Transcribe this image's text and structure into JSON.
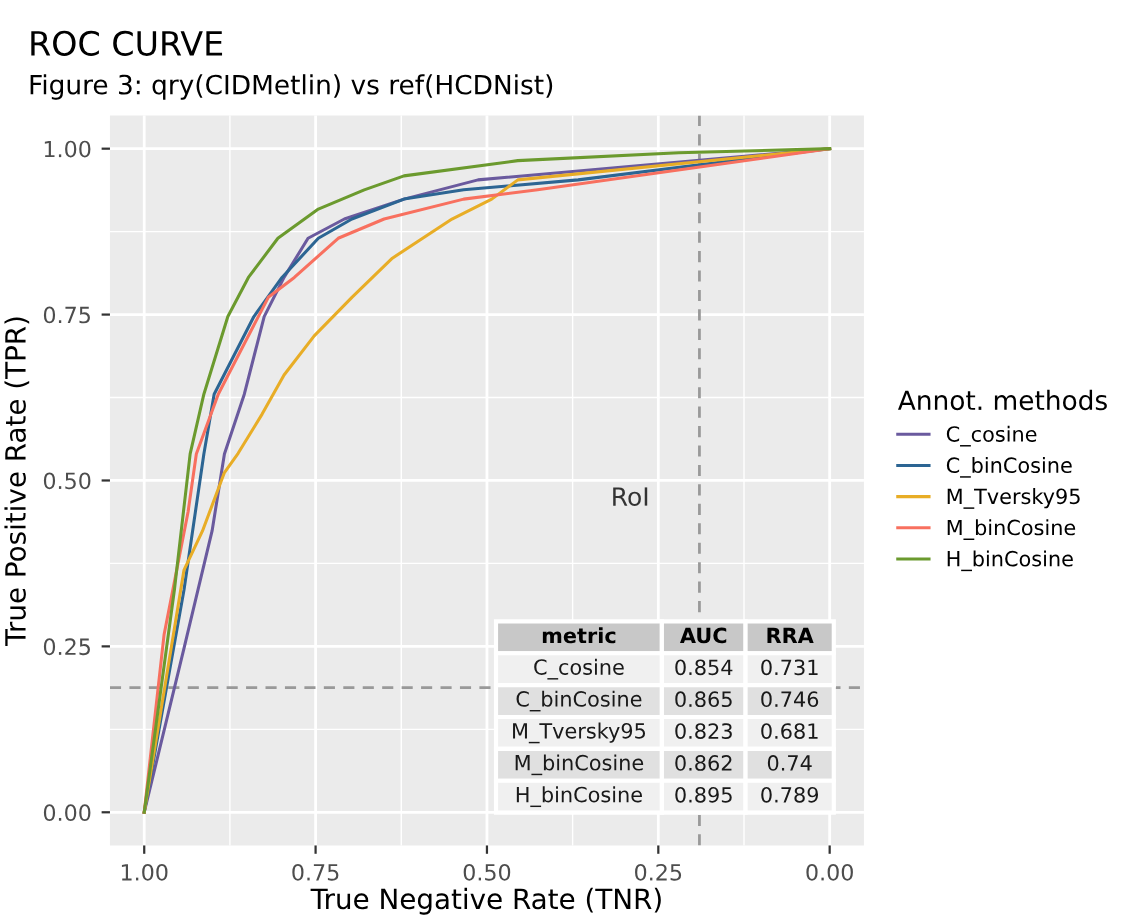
{
  "chart_data": {
    "type": "line",
    "title": "ROC CURVE",
    "subtitle": "Figure 3: qry(CIDMetlin) vs ref(HCDNist)",
    "xlabel": "True Negative Rate (TNR)",
    "ylabel": "True Positive Rate (TPR)",
    "legend_title": "Annot. methods",
    "xlim": [
      1.05,
      -0.05
    ],
    "ylim": [
      -0.05,
      1.05
    ],
    "xticks": [
      {
        "value": 1,
        "label": "1.00"
      },
      {
        "value": 0.75,
        "label": "0.75"
      },
      {
        "value": 0.5,
        "label": "0.50"
      },
      {
        "value": 0.25,
        "label": "0.25"
      },
      {
        "value": 0,
        "label": "0.00"
      }
    ],
    "yticks": [
      {
        "value": 0,
        "label": "0.00"
      },
      {
        "value": 0.25,
        "label": "0.25"
      },
      {
        "value": 0.5,
        "label": "0.50"
      },
      {
        "value": 0.75,
        "label": "0.75"
      },
      {
        "value": 1,
        "label": "1.00"
      }
    ],
    "grid": true,
    "legend": "right",
    "series": [
      {
        "name": "C_cosine",
        "color": "#6a5a9e",
        "x": [
          1,
          0.942,
          0.901,
          0.883,
          0.854,
          0.825,
          0.796,
          0.761,
          0.708,
          0.621,
          0.513,
          0
        ],
        "values": [
          0,
          0.247,
          0.424,
          0.54,
          0.63,
          0.747,
          0.806,
          0.865,
          0.894,
          0.924,
          0.953,
          1
        ]
      },
      {
        "name": "C_binCosine",
        "color": "#2c6593",
        "x": [
          1,
          0.942,
          0.913,
          0.898,
          0.84,
          0.799,
          0.746,
          0.697,
          0.621,
          0.534,
          0.367,
          0
        ],
        "values": [
          0,
          0.335,
          0.54,
          0.63,
          0.747,
          0.806,
          0.865,
          0.894,
          0.924,
          0.938,
          0.953,
          1
        ]
      },
      {
        "name": "M_Tversky95",
        "color": "#e8ad26",
        "x": [
          1,
          0.942,
          0.915,
          0.883,
          0.863,
          0.828,
          0.796,
          0.752,
          0.697,
          0.638,
          0.551,
          0.493,
          0.455,
          0
        ],
        "values": [
          0,
          0.365,
          0.424,
          0.512,
          0.541,
          0.6,
          0.659,
          0.718,
          0.776,
          0.835,
          0.894,
          0.924,
          0.953,
          1
        ]
      },
      {
        "name": "M_binCosine",
        "color": "#f8705f",
        "x": [
          1,
          0.971,
          0.936,
          0.924,
          0.892,
          0.848,
          0.819,
          0.781,
          0.717,
          0.65,
          0.534,
          0.426,
          0
        ],
        "values": [
          0,
          0.268,
          0.453,
          0.54,
          0.63,
          0.718,
          0.776,
          0.806,
          0.865,
          0.894,
          0.924,
          0.938,
          1
        ]
      },
      {
        "name": "H_binCosine",
        "color": "#6b9a2e",
        "x": [
          1,
          0.956,
          0.933,
          0.913,
          0.878,
          0.848,
          0.805,
          0.746,
          0.679,
          0.621,
          0.455,
          0.22,
          0
        ],
        "values": [
          0,
          0.335,
          0.54,
          0.63,
          0.747,
          0.806,
          0.865,
          0.909,
          0.938,
          0.959,
          0.982,
          0.994,
          1
        ]
      }
    ],
    "ref_lines": [
      {
        "axis": "x",
        "value": 0.19,
        "color": "#999999",
        "line_style": "dashed"
      },
      {
        "axis": "y",
        "value": 0.188,
        "color": "#999999",
        "line_style": "dashed"
      }
    ],
    "annotations": [
      "RoI",
      "metric",
      "AUC",
      "RRA",
      "C_cosine",
      "0.854",
      "0.731",
      "C_binCosine",
      "0.865",
      "0.746",
      "M_Tversky95",
      "0.823",
      "0.681",
      "M_binCosine",
      "0.862",
      "0.74",
      "H_binCosine",
      "0.895",
      "0.789"
    ]
  }
}
